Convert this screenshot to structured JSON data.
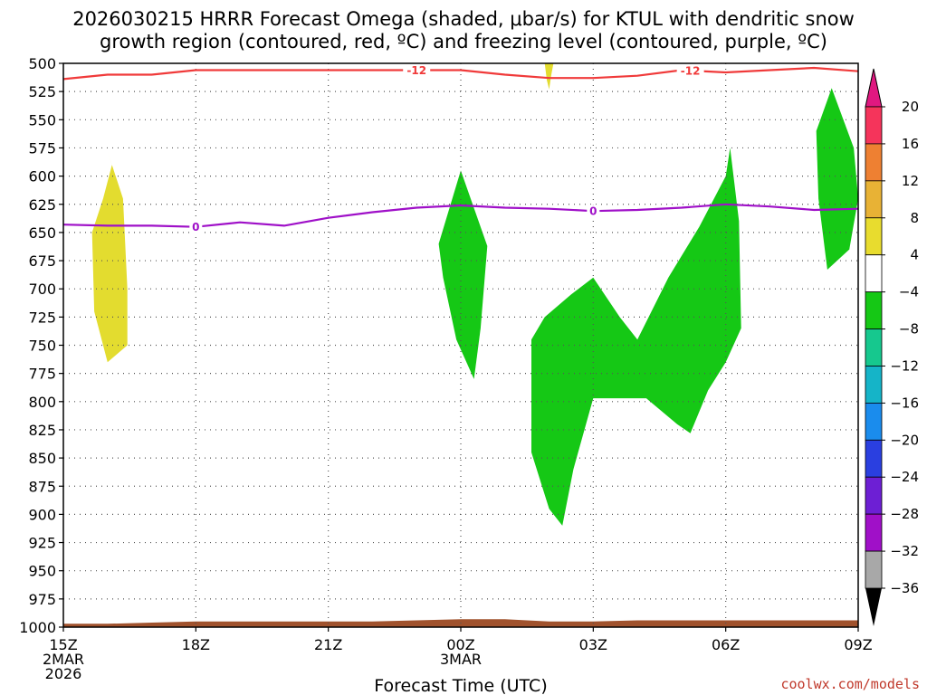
{
  "chart_data": {
    "type": "heatmap",
    "title_line1": "2026030215 HRRR Forecast Omega (shaded, μbar/s) for KTUL with dendritic snow",
    "title_line2": "growth region (contoured, red, ºC) and freezing level (contoured, purple, ºC)",
    "xlabel": "Forecast Time (UTC)",
    "credit": "coolwx.com/models",
    "x_range": [
      0,
      18
    ],
    "y_range": [
      500,
      1000
    ],
    "y_ticks": [
      500,
      525,
      550,
      575,
      600,
      625,
      650,
      675,
      700,
      725,
      750,
      775,
      800,
      825,
      850,
      875,
      900,
      925,
      950,
      975,
      1000
    ],
    "x_ticks": [
      {
        "x": 0,
        "lines": [
          "15Z",
          "2MAR",
          "2026"
        ]
      },
      {
        "x": 3,
        "lines": [
          "18Z"
        ]
      },
      {
        "x": 6,
        "lines": [
          "21Z"
        ]
      },
      {
        "x": 9,
        "lines": [
          "00Z",
          "3MAR"
        ]
      },
      {
        "x": 12,
        "lines": [
          "03Z"
        ]
      },
      {
        "x": 15,
        "lines": [
          "06Z"
        ]
      },
      {
        "x": 18,
        "lines": [
          "09Z"
        ]
      }
    ],
    "colorbar": {
      "labels": [
        20,
        16,
        12,
        8,
        4,
        -4,
        -8,
        -12,
        -16,
        -20,
        -24,
        -28,
        -32,
        -36
      ],
      "colors": [
        "#f5345b",
        "#ee8032",
        "#e8b235",
        "#e8dc2e",
        "#ffffff",
        "#15c815",
        "#16c88e",
        "#15b4c8",
        "#1a8ced",
        "#2a3fe0",
        "#6d1fd4",
        "#a010c8",
        "#a8a8a8"
      ],
      "top_color": "#e01880",
      "bottom_color": "#000000"
    },
    "omega_regions": [
      {
        "name": "positive-omega-yellow-1",
        "value": 5,
        "color": "#e3dc2f",
        "points": [
          [
            0.9,
            620
          ],
          [
            1.1,
            590
          ],
          [
            1.0,
            578
          ],
          [
            1.35,
            620
          ],
          [
            1.45,
            700
          ],
          [
            1.45,
            750
          ],
          [
            1.0,
            765
          ],
          [
            0.7,
            720
          ],
          [
            0.65,
            650
          ]
        ]
      },
      {
        "name": "positive-omega-yellow-2",
        "value": 5,
        "color": "#e3dc2f",
        "points": [
          [
            10.9,
            500
          ],
          [
            11.1,
            500
          ],
          [
            11.05,
            510
          ],
          [
            11.0,
            523
          ],
          [
            10.95,
            515
          ]
        ]
      },
      {
        "name": "negative-omega-green-1",
        "value": -6,
        "color": "#15c815",
        "points": [
          [
            9.0,
            595
          ],
          [
            9.6,
            662
          ],
          [
            9.45,
            735
          ],
          [
            9.3,
            780
          ],
          [
            8.9,
            745
          ],
          [
            8.6,
            690
          ],
          [
            8.5,
            660
          ]
        ]
      },
      {
        "name": "negative-omega-green-2",
        "value": -6,
        "color": "#15c815",
        "points": [
          [
            12.0,
            690
          ],
          [
            12.6,
            725
          ],
          [
            13.0,
            745
          ],
          [
            13.7,
            690
          ],
          [
            14.4,
            645
          ],
          [
            15.0,
            600
          ],
          [
            15.1,
            575
          ],
          [
            15.3,
            640
          ],
          [
            15.35,
            735
          ],
          [
            15.0,
            765
          ],
          [
            14.6,
            790
          ],
          [
            14.2,
            828
          ],
          [
            13.9,
            820
          ],
          [
            13.2,
            797
          ],
          [
            12.0,
            797
          ],
          [
            11.55,
            860
          ],
          [
            11.3,
            910
          ],
          [
            11.0,
            895
          ],
          [
            10.6,
            845
          ],
          [
            10.6,
            745
          ],
          [
            10.9,
            725
          ],
          [
            11.5,
            705
          ]
        ]
      },
      {
        "name": "negative-omega-green-3",
        "value": -6,
        "color": "#15c815",
        "points": [
          [
            17.4,
            522
          ],
          [
            17.9,
            575
          ],
          [
            18.0,
            620
          ],
          [
            17.8,
            665
          ],
          [
            17.3,
            683
          ],
          [
            17.1,
            620
          ],
          [
            17.05,
            560
          ]
        ]
      }
    ],
    "dendritic_contour": {
      "label": "-12",
      "color": "#f03a3a",
      "x": [
        0,
        1,
        2,
        3,
        4,
        5,
        6,
        7,
        8,
        9,
        10,
        11,
        12,
        13,
        14,
        15,
        16,
        17,
        18
      ],
      "y": [
        514,
        510,
        510,
        506,
        506,
        506,
        506,
        506,
        506,
        506,
        510,
        513,
        513,
        511,
        506,
        508,
        506,
        504,
        507
      ],
      "label_at_x": [
        8,
        14.2
      ]
    },
    "freezing_contour": {
      "label": "0",
      "color": "#9f10c8",
      "x": [
        0,
        1,
        2,
        3,
        4,
        5,
        6,
        7,
        8,
        9,
        10,
        11,
        12,
        13,
        14,
        15,
        16,
        17,
        18
      ],
      "y": [
        643,
        644,
        644,
        645,
        641,
        644,
        637,
        632,
        628,
        626,
        628,
        629,
        631,
        630,
        628,
        625,
        627,
        630,
        629
      ],
      "label_at_x": [
        3,
        12
      ]
    },
    "terrain": {
      "color": "#a0522d",
      "x": [
        0,
        1,
        2,
        3,
        4,
        5,
        6,
        7,
        8,
        9,
        10,
        11,
        12,
        13,
        14,
        15,
        16,
        17,
        18
      ],
      "y": [
        997,
        997,
        996,
        995,
        995,
        995,
        995,
        995,
        994,
        993,
        993,
        995,
        995,
        994,
        994,
        994,
        994,
        994,
        994
      ]
    }
  }
}
